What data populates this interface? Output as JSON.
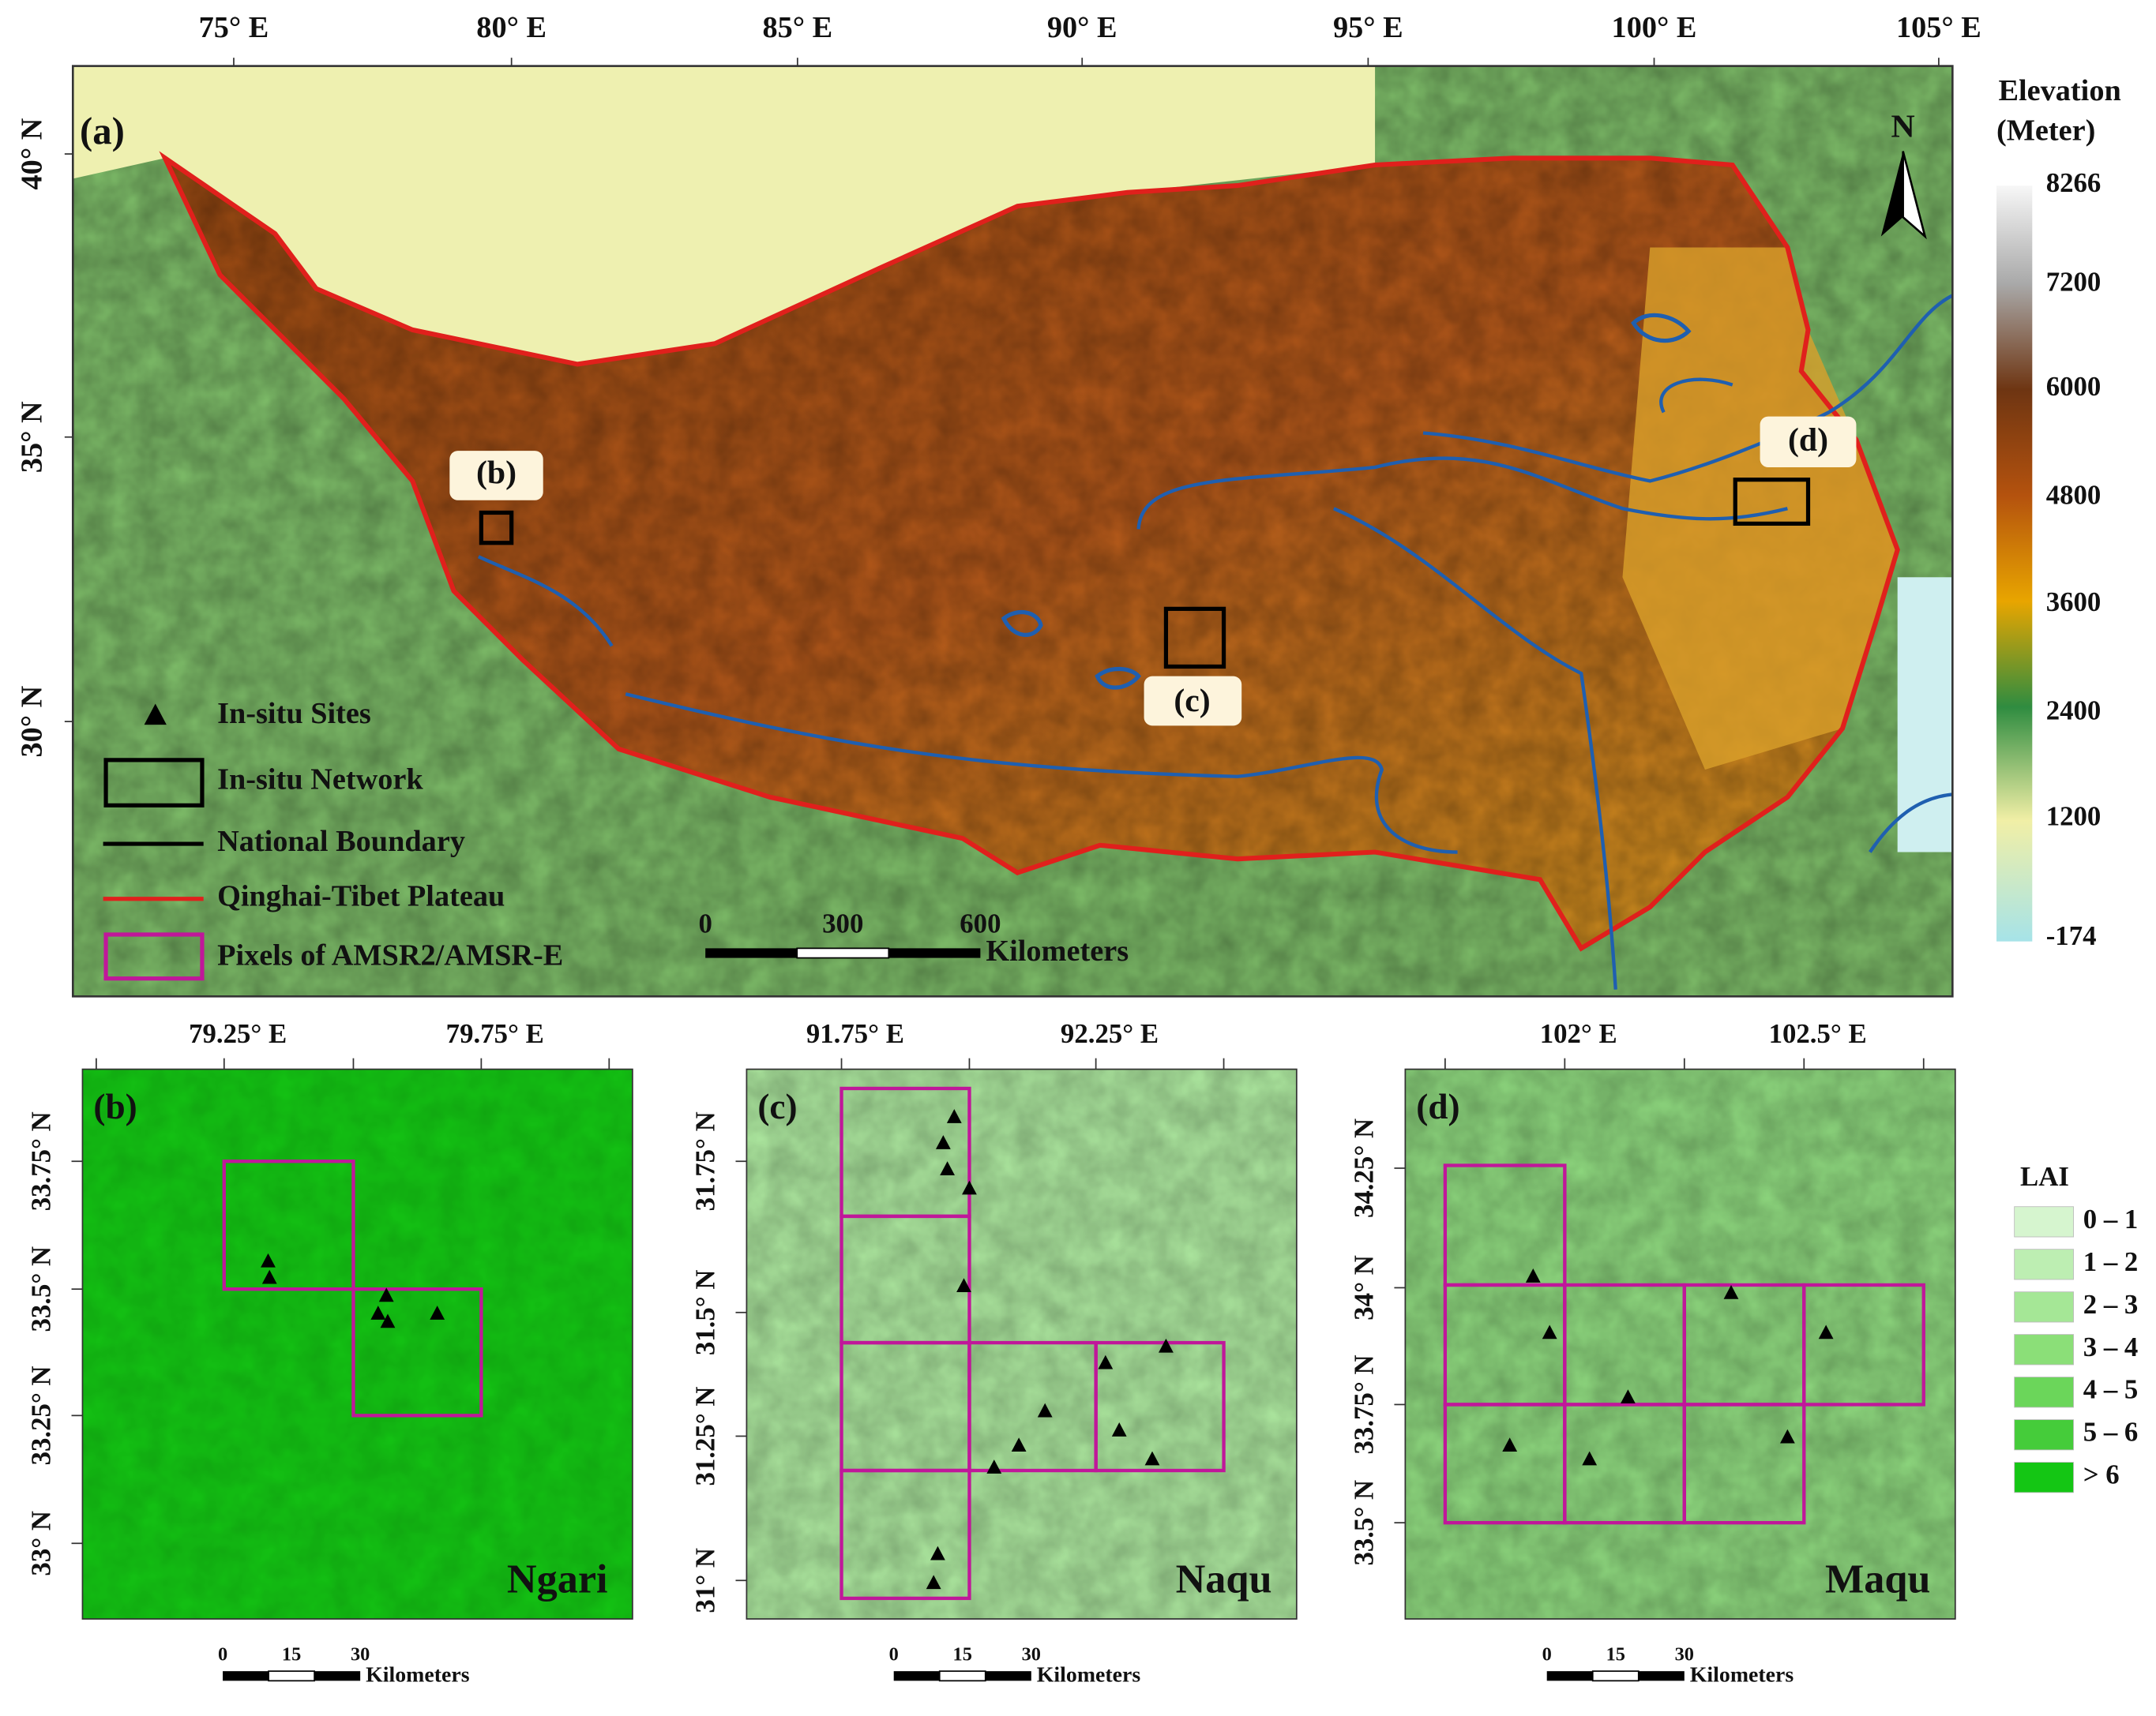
{
  "panel_a": {
    "label": "(a)",
    "lon_ticks": [
      "75° E",
      "80° E",
      "85° E",
      "90° E",
      "95° E",
      "100° E",
      "105° E"
    ],
    "lat_ticks": [
      "40° N",
      "35° N",
      "30° N"
    ],
    "north": "N",
    "insets": [
      "(b)",
      "(c)",
      "(d)"
    ],
    "legend": [
      "In-situ Sites",
      "In-situ Network",
      "National Boundary",
      "Qinghai-Tibet Plateau",
      "Pixels of AMSR2/AMSR-E"
    ],
    "scale_bar": {
      "ticks": [
        "0",
        "300",
        "600"
      ],
      "unit": "Kilometers"
    },
    "colorbar": {
      "title": [
        "Elevation",
        "(Meter)"
      ],
      "labels": [
        "8266",
        "7200",
        "6000",
        "4800",
        "3600",
        "2400",
        "1200",
        "-174"
      ]
    }
  },
  "panels": [
    {
      "label": "(b)",
      "name": "Ngari",
      "lon_ticks": [
        "79.25° E",
        "79.75° E"
      ],
      "lat_ticks": [
        "33.75° N",
        "33.5° N",
        "33.25° N",
        "33° N"
      ],
      "scale_bar": {
        "ticks": [
          "0",
          "15",
          "30"
        ],
        "unit": "Kilometers"
      }
    },
    {
      "label": "(c)",
      "name": "Naqu",
      "lon_ticks": [
        "91.75° E",
        "92.25° E"
      ],
      "lat_ticks": [
        "31.75° N",
        "31.5° N",
        "31.25° N",
        "31° N"
      ],
      "scale_bar": {
        "ticks": [
          "0",
          "15",
          "30"
        ],
        "unit": "Kilometers"
      }
    },
    {
      "label": "(d)",
      "name": "Maqu",
      "lon_ticks": [
        "102° E",
        "102.5° E"
      ],
      "lat_ticks": [
        "34.25° N",
        "34° N",
        "33.75° N",
        "33.5° N"
      ],
      "scale_bar": {
        "ticks": [
          "0",
          "15",
          "30"
        ],
        "unit": "Kilometers"
      }
    }
  ],
  "lai_legend": {
    "title": "LAI",
    "classes": [
      "0 – 1",
      "1 – 2",
      "2 – 3",
      "3 – 4",
      "4 – 5",
      "5 – 6",
      "> 6"
    ]
  }
}
